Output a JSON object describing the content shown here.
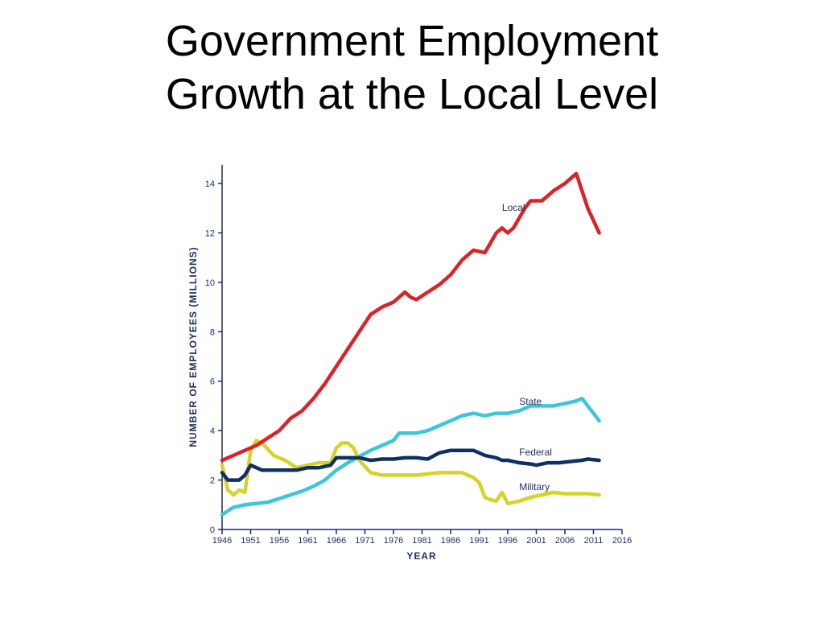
{
  "title": {
    "line1": "Government Employment",
    "line2": "Growth at the Local Level"
  },
  "chart_data": {
    "type": "line",
    "xlabel": "YEAR",
    "ylabel": "NUMBER OF EMPLOYEES (MILLIONS)",
    "xlim": [
      1946,
      2016
    ],
    "ylim": [
      0,
      14
    ],
    "x_ticks": [
      "1946",
      "1951",
      "1956",
      "1961",
      "1966",
      "1971",
      "1976",
      "1981",
      "1986",
      "1991",
      "1996",
      "2001",
      "2006",
      "2011",
      "2016"
    ],
    "y_ticks": [
      "0",
      "2",
      "4",
      "6",
      "8",
      "10",
      "12",
      "14"
    ],
    "grid": false,
    "legend": "inline labels",
    "series": [
      {
        "name": "Local",
        "color": "#d9232a",
        "points": [
          [
            1946,
            2.8
          ],
          [
            1948,
            3.0
          ],
          [
            1950,
            3.2
          ],
          [
            1952,
            3.4
          ],
          [
            1954,
            3.7
          ],
          [
            1956,
            4.0
          ],
          [
            1958,
            4.5
          ],
          [
            1960,
            4.8
          ],
          [
            1962,
            5.3
          ],
          [
            1964,
            5.9
          ],
          [
            1966,
            6.6
          ],
          [
            1968,
            7.3
          ],
          [
            1970,
            8.0
          ],
          [
            1972,
            8.7
          ],
          [
            1974,
            9.0
          ],
          [
            1976,
            9.2
          ],
          [
            1978,
            9.6
          ],
          [
            1979,
            9.4
          ],
          [
            1980,
            9.3
          ],
          [
            1982,
            9.6
          ],
          [
            1984,
            9.9
          ],
          [
            1986,
            10.3
          ],
          [
            1988,
            10.9
          ],
          [
            1990,
            11.3
          ],
          [
            1992,
            11.2
          ],
          [
            1994,
            12.0
          ],
          [
            1995,
            12.2
          ],
          [
            1996,
            12.0
          ],
          [
            1997,
            12.2
          ],
          [
            1999,
            13.0
          ],
          [
            2000,
            13.3
          ],
          [
            2002,
            13.3
          ],
          [
            2004,
            13.7
          ],
          [
            2006,
            14.0
          ],
          [
            2008,
            14.4
          ],
          [
            2010,
            13.0
          ],
          [
            2012,
            12.0
          ]
        ]
      },
      {
        "name": "State",
        "color": "#3ec4dc",
        "points": [
          [
            1946,
            0.6
          ],
          [
            1948,
            0.9
          ],
          [
            1950,
            1.0
          ],
          [
            1952,
            1.05
          ],
          [
            1954,
            1.1
          ],
          [
            1956,
            1.25
          ],
          [
            1958,
            1.4
          ],
          [
            1960,
            1.55
          ],
          [
            1962,
            1.75
          ],
          [
            1964,
            2.0
          ],
          [
            1966,
            2.4
          ],
          [
            1968,
            2.7
          ],
          [
            1970,
            2.95
          ],
          [
            1972,
            3.2
          ],
          [
            1974,
            3.4
          ],
          [
            1976,
            3.6
          ],
          [
            1977,
            3.9
          ],
          [
            1980,
            3.9
          ],
          [
            1982,
            4.0
          ],
          [
            1984,
            4.2
          ],
          [
            1986,
            4.4
          ],
          [
            1988,
            4.6
          ],
          [
            1990,
            4.7
          ],
          [
            1992,
            4.6
          ],
          [
            1994,
            4.7
          ],
          [
            1996,
            4.7
          ],
          [
            1998,
            4.8
          ],
          [
            2000,
            5.0
          ],
          [
            2002,
            5.0
          ],
          [
            2004,
            5.0
          ],
          [
            2006,
            5.1
          ],
          [
            2008,
            5.2
          ],
          [
            2009,
            5.3
          ],
          [
            2010,
            5.0
          ],
          [
            2012,
            4.4
          ]
        ]
      },
      {
        "name": "Federal",
        "color": "#12305f",
        "points": [
          [
            1946,
            2.3
          ],
          [
            1947,
            2.0
          ],
          [
            1949,
            2.0
          ],
          [
            1950,
            2.2
          ],
          [
            1951,
            2.6
          ],
          [
            1953,
            2.4
          ],
          [
            1955,
            2.4
          ],
          [
            1957,
            2.4
          ],
          [
            1959,
            2.4
          ],
          [
            1961,
            2.5
          ],
          [
            1963,
            2.5
          ],
          [
            1965,
            2.6
          ],
          [
            1966,
            2.9
          ],
          [
            1968,
            2.9
          ],
          [
            1970,
            2.9
          ],
          [
            1972,
            2.8
          ],
          [
            1974,
            2.85
          ],
          [
            1976,
            2.85
          ],
          [
            1978,
            2.9
          ],
          [
            1980,
            2.9
          ],
          [
            1982,
            2.85
          ],
          [
            1984,
            3.1
          ],
          [
            1986,
            3.2
          ],
          [
            1988,
            3.2
          ],
          [
            1990,
            3.2
          ],
          [
            1992,
            3.0
          ],
          [
            1994,
            2.9
          ],
          [
            1995,
            2.8
          ],
          [
            1996,
            2.8
          ],
          [
            1998,
            2.7
          ],
          [
            2000,
            2.65
          ],
          [
            2001,
            2.6
          ],
          [
            2003,
            2.7
          ],
          [
            2005,
            2.7
          ],
          [
            2007,
            2.75
          ],
          [
            2009,
            2.8
          ],
          [
            2010,
            2.85
          ],
          [
            2012,
            2.8
          ]
        ]
      },
      {
        "name": "Military",
        "color": "#d5d32a",
        "points": [
          [
            1946,
            2.6
          ],
          [
            1947,
            1.6
          ],
          [
            1948,
            1.4
          ],
          [
            1949,
            1.6
          ],
          [
            1950,
            1.5
          ],
          [
            1951,
            3.2
          ],
          [
            1952,
            3.6
          ],
          [
            1953,
            3.5
          ],
          [
            1955,
            3.0
          ],
          [
            1957,
            2.8
          ],
          [
            1959,
            2.5
          ],
          [
            1961,
            2.6
          ],
          [
            1963,
            2.7
          ],
          [
            1965,
            2.7
          ],
          [
            1966,
            3.3
          ],
          [
            1967,
            3.5
          ],
          [
            1968,
            3.5
          ],
          [
            1969,
            3.3
          ],
          [
            1970,
            2.8
          ],
          [
            1972,
            2.3
          ],
          [
            1974,
            2.2
          ],
          [
            1976,
            2.2
          ],
          [
            1978,
            2.2
          ],
          [
            1980,
            2.2
          ],
          [
            1982,
            2.25
          ],
          [
            1984,
            2.3
          ],
          [
            1986,
            2.3
          ],
          [
            1988,
            2.3
          ],
          [
            1990,
            2.1
          ],
          [
            1991,
            1.9
          ],
          [
            1992,
            1.3
          ],
          [
            1993,
            1.2
          ],
          [
            1994,
            1.15
          ],
          [
            1995,
            1.5
          ],
          [
            1996,
            1.05
          ],
          [
            1998,
            1.15
          ],
          [
            2000,
            1.3
          ],
          [
            2002,
            1.4
          ],
          [
            2004,
            1.5
          ],
          [
            2006,
            1.45
          ],
          [
            2008,
            1.45
          ],
          [
            2010,
            1.45
          ],
          [
            2012,
            1.4
          ]
        ]
      }
    ]
  }
}
